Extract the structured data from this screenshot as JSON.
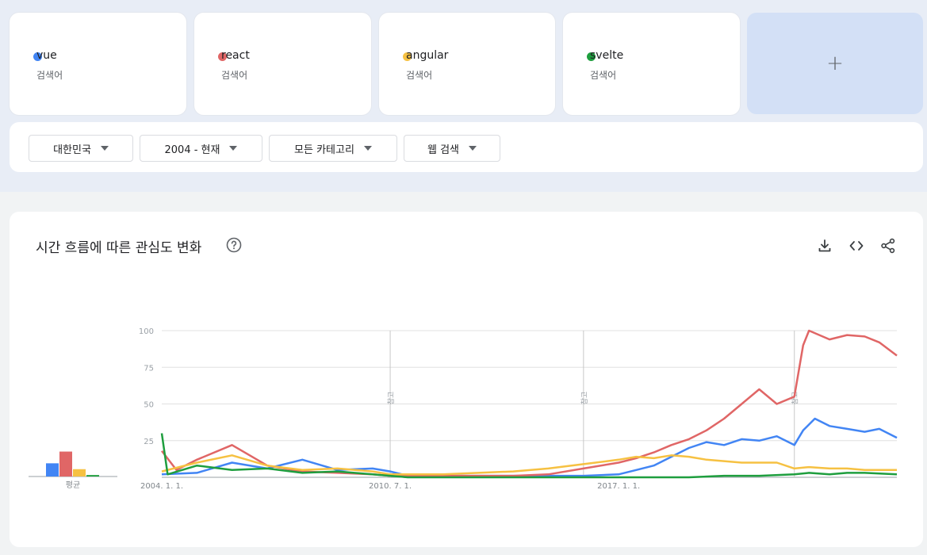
{
  "terms": [
    {
      "name": "vue",
      "sub": "검색어",
      "color": "#4285f4"
    },
    {
      "name": "react",
      "sub": "검색어",
      "color": "#e06666"
    },
    {
      "name": "angular",
      "sub": "검색어",
      "color": "#f6c142"
    },
    {
      "name": "svelte",
      "sub": "검색어",
      "color": "#1e9e3e"
    }
  ],
  "add_label": "+",
  "filters": {
    "region": "대한민국",
    "period": "2004 - 현재",
    "category": "모든 카테고리",
    "search_type": "웹 검색"
  },
  "chart": {
    "title": "시간 흐름에 따른 관심도 변화",
    "avg_label": "평균",
    "note_label": "참고",
    "tools": [
      "download-icon",
      "embed-code-icon",
      "share-icon"
    ]
  },
  "chart_data": {
    "type": "line",
    "x_range": [
      "2004-01",
      "2024-12"
    ],
    "x_tick_labels": [
      {
        "label": "2004. 1. 1.",
        "date": "2004-01"
      },
      {
        "label": "2010. 7. 1.",
        "date": "2010-07"
      },
      {
        "label": "2017. 1. 1.",
        "date": "2017-01"
      }
    ],
    "y_ticks": [
      25,
      50,
      75,
      100
    ],
    "ylim": [
      0,
      100
    ],
    "grid": true,
    "annotations": [
      {
        "label": "참고",
        "date": "2010-07"
      },
      {
        "label": "참고",
        "date": "2016-01"
      },
      {
        "label": "참고",
        "date": "2022-01"
      }
    ],
    "averages": [
      {
        "name": "vue",
        "value": 9
      },
      {
        "name": "react",
        "value": 17
      },
      {
        "name": "angular",
        "value": 5
      },
      {
        "name": "svelte",
        "value": 1
      }
    ],
    "series": [
      {
        "name": "vue",
        "color": "#4285f4",
        "points": [
          [
            "2004-01",
            2
          ],
          [
            "2005-01",
            3
          ],
          [
            "2006-01",
            10
          ],
          [
            "2007-01",
            6
          ],
          [
            "2008-01",
            12
          ],
          [
            "2009-01",
            5
          ],
          [
            "2010-01",
            6
          ],
          [
            "2010-07",
            4
          ],
          [
            "2011-01",
            1
          ],
          [
            "2012-01",
            1
          ],
          [
            "2013-01",
            1
          ],
          [
            "2014-01",
            1
          ],
          [
            "2015-01",
            1
          ],
          [
            "2016-01",
            1
          ],
          [
            "2017-01",
            2
          ],
          [
            "2017-07",
            5
          ],
          [
            "2018-01",
            8
          ],
          [
            "2018-07",
            14
          ],
          [
            "2019-01",
            20
          ],
          [
            "2019-07",
            24
          ],
          [
            "2020-01",
            22
          ],
          [
            "2020-07",
            26
          ],
          [
            "2021-01",
            25
          ],
          [
            "2021-07",
            28
          ],
          [
            "2022-01",
            22
          ],
          [
            "2022-04",
            32
          ],
          [
            "2022-08",
            40
          ],
          [
            "2023-01",
            35
          ],
          [
            "2023-07",
            33
          ],
          [
            "2024-01",
            31
          ],
          [
            "2024-06",
            33
          ],
          [
            "2024-12",
            27
          ]
        ]
      },
      {
        "name": "react",
        "color": "#e06666",
        "points": [
          [
            "2004-01",
            18
          ],
          [
            "2004-06",
            5
          ],
          [
            "2005-01",
            12
          ],
          [
            "2006-01",
            22
          ],
          [
            "2007-01",
            8
          ],
          [
            "2008-01",
            4
          ],
          [
            "2009-01",
            3
          ],
          [
            "2010-01",
            2
          ],
          [
            "2010-07",
            1
          ],
          [
            "2011-01",
            1
          ],
          [
            "2012-01",
            1
          ],
          [
            "2013-01",
            1
          ],
          [
            "2014-01",
            1
          ],
          [
            "2015-01",
            2
          ],
          [
            "2016-01",
            6
          ],
          [
            "2017-01",
            10
          ],
          [
            "2017-07",
            13
          ],
          [
            "2018-01",
            17
          ],
          [
            "2018-07",
            22
          ],
          [
            "2019-01",
            26
          ],
          [
            "2019-07",
            32
          ],
          [
            "2020-01",
            40
          ],
          [
            "2020-07",
            50
          ],
          [
            "2021-01",
            60
          ],
          [
            "2021-07",
            50
          ],
          [
            "2022-01",
            55
          ],
          [
            "2022-04",
            90
          ],
          [
            "2022-06",
            100
          ],
          [
            "2023-01",
            94
          ],
          [
            "2023-07",
            97
          ],
          [
            "2024-01",
            96
          ],
          [
            "2024-06",
            92
          ],
          [
            "2024-12",
            83
          ]
        ]
      },
      {
        "name": "angular",
        "color": "#f6c142",
        "points": [
          [
            "2004-01",
            4
          ],
          [
            "2005-01",
            10
          ],
          [
            "2006-01",
            15
          ],
          [
            "2007-01",
            8
          ],
          [
            "2008-01",
            5
          ],
          [
            "2009-01",
            6
          ],
          [
            "2010-01",
            4
          ],
          [
            "2010-07",
            2
          ],
          [
            "2011-01",
            2
          ],
          [
            "2012-01",
            2
          ],
          [
            "2013-01",
            3
          ],
          [
            "2014-01",
            4
          ],
          [
            "2015-01",
            6
          ],
          [
            "2016-01",
            9
          ],
          [
            "2017-01",
            12
          ],
          [
            "2017-07",
            14
          ],
          [
            "2018-01",
            13
          ],
          [
            "2018-07",
            15
          ],
          [
            "2019-01",
            14
          ],
          [
            "2019-07",
            12
          ],
          [
            "2020-01",
            11
          ],
          [
            "2020-07",
            10
          ],
          [
            "2021-01",
            10
          ],
          [
            "2021-07",
            10
          ],
          [
            "2022-01",
            6
          ],
          [
            "2022-06",
            7
          ],
          [
            "2023-01",
            6
          ],
          [
            "2023-07",
            6
          ],
          [
            "2024-01",
            5
          ],
          [
            "2024-12",
            5
          ]
        ]
      },
      {
        "name": "svelte",
        "color": "#1e9e3e",
        "points": [
          [
            "2004-01",
            30
          ],
          [
            "2004-03",
            2
          ],
          [
            "2005-01",
            8
          ],
          [
            "2006-01",
            5
          ],
          [
            "2007-01",
            6
          ],
          [
            "2008-01",
            3
          ],
          [
            "2009-01",
            4
          ],
          [
            "2010-01",
            2
          ],
          [
            "2010-07",
            1
          ],
          [
            "2011-01",
            0
          ],
          [
            "2012-01",
            0
          ],
          [
            "2013-01",
            0
          ],
          [
            "2014-01",
            0
          ],
          [
            "2015-01",
            0
          ],
          [
            "2016-01",
            0
          ],
          [
            "2017-01",
            0
          ],
          [
            "2018-01",
            0
          ],
          [
            "2019-01",
            0
          ],
          [
            "2020-01",
            1
          ],
          [
            "2021-01",
            1
          ],
          [
            "2022-01",
            2
          ],
          [
            "2022-06",
            3
          ],
          [
            "2023-01",
            2
          ],
          [
            "2023-07",
            3
          ],
          [
            "2024-01",
            3
          ],
          [
            "2024-12",
            2
          ]
        ]
      }
    ]
  }
}
